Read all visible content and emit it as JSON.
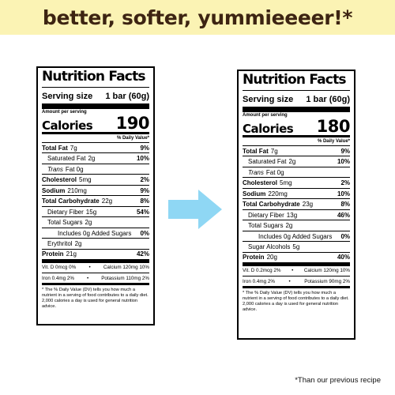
{
  "banner": {
    "text": "better, softer, yummieeeer!*"
  },
  "arrow": {
    "color": "#8fd7f4",
    "icon": "right-arrow-icon"
  },
  "panels": {
    "old": {
      "title": "Nutrition Facts",
      "serving_label": "Serving size",
      "serving_value": "1 bar (60g)",
      "amount_per_serving": "Amount per serving",
      "calories_label": "Calories",
      "calories_value": "190",
      "dv_header": "% Daily Value*",
      "rows": [
        {
          "label": "Total Fat",
          "value": "7g",
          "pct": "9%"
        },
        {
          "label": "Saturated Fat",
          "value": "2g",
          "pct": "10%"
        },
        {
          "label": "Trans",
          "value": "Fat 0g",
          "pct": ""
        },
        {
          "label": "Cholesterol",
          "value": "5mg",
          "pct": "2%"
        },
        {
          "label": "Sodium",
          "value": "210mg",
          "pct": "9%"
        },
        {
          "label": "Total Carbohydrate",
          "value": "22g",
          "pct": "8%"
        },
        {
          "label": "Dietary Fiber",
          "value": "15g",
          "pct": "54%"
        },
        {
          "label": "Total Sugars",
          "value": "2g",
          "pct": ""
        },
        {
          "label": "Includes 0g Added Sugars",
          "value": "",
          "pct": "0%"
        },
        {
          "label": "Erythritol",
          "value": "2g",
          "pct": ""
        },
        {
          "label": "Protein",
          "value": "21g",
          "pct": "42%"
        }
      ],
      "vitamins": [
        {
          "left": "Vit. D 0mcg 0%",
          "right": "Calcium 120mg 10%"
        },
        {
          "left": "Iron 0.4mg 2%",
          "right": "Potassium 110mg 2%"
        }
      ],
      "footnote": "* The % Daily Value (DV) tells you how much a nutrient in a serving of food contributes to a daily diet. 2,000 calories a day is used for general nutrition advice."
    },
    "new": {
      "title": "Nutrition Facts",
      "serving_label": "Serving size",
      "serving_value": "1 bar (60g)",
      "amount_per_serving": "Amount per serving",
      "calories_label": "Calories",
      "calories_value": "180",
      "dv_header": "% Daily Value*",
      "rows": [
        {
          "label": "Total Fat",
          "value": "7g",
          "pct": "9%"
        },
        {
          "label": "Saturated Fat",
          "value": "2g",
          "pct": "10%"
        },
        {
          "label": "Trans",
          "value": "Fat 0g",
          "pct": ""
        },
        {
          "label": "Cholesterol",
          "value": "5mg",
          "pct": "2%"
        },
        {
          "label": "Sodium",
          "value": "220mg",
          "pct": "10%"
        },
        {
          "label": "Total Carbohydrate",
          "value": "23g",
          "pct": "8%"
        },
        {
          "label": "Dietary Fiber",
          "value": "13g",
          "pct": "46%"
        },
        {
          "label": "Total Sugars",
          "value": "2g",
          "pct": ""
        },
        {
          "label": "Includes 0g Added Sugars",
          "value": "",
          "pct": "0%"
        },
        {
          "label": "Sugar Alcohols",
          "value": "5g",
          "pct": ""
        },
        {
          "label": "Protein",
          "value": "20g",
          "pct": "40%"
        }
      ],
      "vitamins": [
        {
          "left": "Vit. D 0.2mcg 2%",
          "right": "Calcium 120mg 10%"
        },
        {
          "left": "Iron 0.4mg 2%",
          "right": "Potassium 90mg 2%"
        }
      ],
      "footnote": "* The % Daily Value (DV) tells you how much a nutrient in a serving of food contributes to a daily diet. 2,000 calories a day is used for general nutrition advice."
    }
  },
  "disclaimer": "*Than our previous recipe"
}
